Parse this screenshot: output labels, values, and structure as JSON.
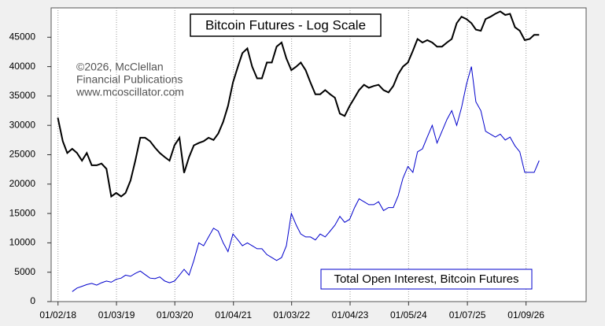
{
  "chart_data": {
    "type": "line",
    "title": "Bitcoin Futures - Log Scale",
    "annotations": [
      "©2026, McClellan",
      "Financial Publications",
      "www.mcoscillator.com"
    ],
    "x": [
      "01/01/18",
      "02/01/18",
      "03/01/18",
      "04/01/18",
      "05/01/18",
      "06/01/18",
      "07/01/18",
      "08/01/18",
      "09/01/18",
      "10/01/18",
      "11/01/18",
      "12/01/18",
      "01/01/19",
      "02/01/19",
      "03/01/19",
      "04/01/19",
      "05/01/19",
      "06/01/19",
      "07/01/19",
      "08/01/19",
      "09/01/19",
      "10/01/19",
      "11/01/19",
      "12/01/19",
      "01/01/20",
      "02/01/20",
      "03/01/20",
      "04/01/20",
      "05/01/20",
      "06/01/20",
      "07/01/20",
      "08/01/20",
      "09/01/20",
      "10/01/20",
      "11/01/20",
      "12/01/20",
      "01/01/21",
      "02/01/21",
      "03/01/21",
      "04/01/21",
      "05/01/21",
      "06/01/21",
      "07/01/21",
      "08/01/21",
      "09/01/21",
      "10/01/21",
      "11/01/21",
      "12/01/21",
      "01/01/22",
      "02/01/22",
      "03/01/22",
      "04/01/22",
      "05/01/22",
      "06/01/22",
      "07/01/22",
      "08/01/22",
      "09/01/22",
      "10/01/22",
      "11/01/22",
      "12/01/22",
      "01/01/23",
      "02/01/23",
      "03/01/23",
      "04/01/23",
      "05/01/23",
      "06/01/23",
      "07/01/23",
      "08/01/23",
      "09/01/23",
      "10/01/23",
      "11/01/23",
      "12/01/23",
      "01/01/24",
      "02/01/24",
      "03/01/24",
      "04/01/24",
      "05/01/24",
      "06/01/24",
      "07/01/24",
      "08/01/24",
      "09/01/24",
      "10/01/24",
      "11/01/24",
      "12/01/24",
      "01/01/25",
      "02/01/25",
      "03/01/25",
      "04/01/25",
      "05/01/25",
      "06/01/25",
      "07/01/25",
      "08/01/25",
      "09/01/25",
      "10/01/25",
      "11/01/25",
      "12/01/25",
      "01/01/26",
      "02/01/26",
      "03/01/26",
      "04/01/26"
    ],
    "series": [
      {
        "color": "#000000",
        "values": [
          31300,
          27300,
          25300,
          26000,
          25300,
          24000,
          25300,
          23200,
          23200,
          23500,
          22600,
          17900,
          18500,
          17900,
          18500,
          20600,
          24000,
          27900,
          27900,
          27300,
          26200,
          25300,
          24600,
          24000,
          26600,
          27900,
          21900,
          24600,
          26600,
          27000,
          27300,
          27900,
          27500,
          28600,
          30600,
          33300,
          37300,
          40000,
          42300,
          43100,
          40000,
          38000,
          38000,
          40700,
          40700,
          43400,
          44100,
          41400,
          39400,
          40000,
          40700,
          39400,
          37300,
          35300,
          35300,
          36000,
          35300,
          34700,
          32000,
          31600,
          33300,
          34700,
          36000,
          36900,
          36400,
          36700,
          36900,
          36000,
          35600,
          36700,
          38700,
          40000,
          40700,
          42700,
          44700,
          44100,
          44500,
          44100,
          43400,
          43400,
          44100,
          44700,
          47400,
          48500,
          48100,
          47400,
          46300,
          46100,
          48100,
          48500,
          49000,
          49400,
          48800,
          49000,
          46700,
          46100,
          44500,
          44700,
          45400,
          45400
        ]
      },
      {
        "name": "Total Open Interest, Bitcoin Futures",
        "color": "#0000cc",
        "values": [
          null,
          null,
          null,
          1700,
          2300,
          2600,
          2900,
          3100,
          2800,
          3200,
          3500,
          3300,
          3800,
          4000,
          4500,
          4300,
          4800,
          5200,
          4600,
          4000,
          3900,
          4200,
          3500,
          3200,
          3500,
          4500,
          5500,
          4500,
          7000,
          10000,
          9500,
          11000,
          12500,
          12000,
          10000,
          8500,
          11500,
          10500,
          9500,
          10000,
          9500,
          9000,
          9000,
          8000,
          7500,
          7000,
          7500,
          9500,
          15000,
          13000,
          11500,
          11000,
          11000,
          10500,
          11500,
          11000,
          12000,
          13000,
          14500,
          13500,
          14000,
          16000,
          17500,
          17000,
          16500,
          16500,
          17000,
          15500,
          16000,
          16000,
          18000,
          21000,
          23000,
          22000,
          25500,
          26000,
          28000,
          30000,
          27000,
          29000,
          31000,
          32500,
          30000,
          33000,
          37000,
          40000,
          34000,
          32500,
          29000,
          28500,
          28000,
          28500,
          27500,
          28000,
          26500,
          25500,
          22000,
          22000,
          22000,
          24000
        ]
      }
    ],
    "xlim": [
      "11/20/17",
      "01/20/27"
    ],
    "xticks": [
      "01/02/18",
      "01/03/19",
      "01/03/20",
      "01/04/21",
      "01/03/22",
      "01/04/23",
      "01/05/24",
      "01/07/25",
      "01/09/26"
    ],
    "ylim": [
      0,
      50000
    ],
    "yticks": [
      0,
      5000,
      10000,
      15000,
      20000,
      25000,
      30000,
      35000,
      40000,
      45000
    ],
    "grid": {
      "x": true,
      "y": false
    }
  }
}
